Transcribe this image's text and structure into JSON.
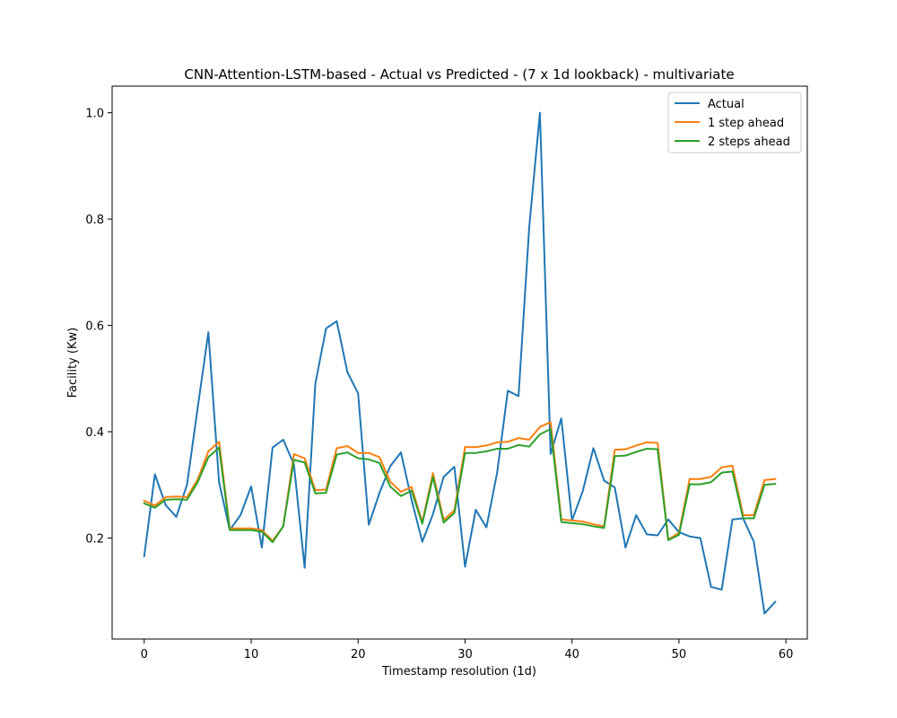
{
  "chart_data": {
    "type": "line",
    "title": "CNN-Attention-LSTM-based - Actual vs Predicted - (7 x 1d lookback) - multivariate",
    "xlabel": "Timestamp resolution (1d)",
    "ylabel": "Facility (Kw)",
    "xlim": [
      -3,
      62
    ],
    "ylim": [
      0.01,
      1.05
    ],
    "xticks": [
      0,
      10,
      20,
      30,
      40,
      50,
      60
    ],
    "yticks": [
      0.2,
      0.4,
      0.6,
      0.8,
      1.0
    ],
    "xtick_labels": [
      "0",
      "10",
      "20",
      "30",
      "40",
      "50",
      "60"
    ],
    "ytick_labels": [
      "0.2",
      "0.4",
      "0.6",
      "0.8",
      "1.0"
    ],
    "grid": false,
    "legend_position": "top-right",
    "x": [
      0,
      1,
      2,
      3,
      4,
      5,
      6,
      7,
      8,
      9,
      10,
      11,
      12,
      13,
      14,
      15,
      16,
      17,
      18,
      19,
      20,
      21,
      22,
      23,
      24,
      25,
      26,
      27,
      28,
      29,
      30,
      31,
      32,
      33,
      34,
      35,
      36,
      37,
      38,
      39,
      40,
      41,
      42,
      43,
      44,
      45,
      46,
      47,
      48,
      49,
      50,
      51,
      52,
      53,
      54,
      55,
      56,
      57,
      58,
      59
    ],
    "series": [
      {
        "name": "Actual",
        "color": "#1f77b4",
        "values": [
          0.166,
          0.32,
          0.262,
          0.24,
          0.3,
          0.445,
          0.587,
          0.305,
          0.215,
          0.243,
          0.297,
          0.182,
          0.37,
          0.385,
          0.338,
          0.144,
          0.49,
          0.594,
          0.608,
          0.512,
          0.472,
          0.225,
          0.285,
          0.335,
          0.361,
          0.272,
          0.193,
          0.245,
          0.315,
          0.334,
          0.146,
          0.253,
          0.22,
          0.323,
          0.477,
          0.467,
          0.785,
          1.0,
          0.358,
          0.425,
          0.233,
          0.288,
          0.369,
          0.308,
          0.295,
          0.182,
          0.243,
          0.207,
          0.205,
          0.235,
          0.211,
          0.203,
          0.2,
          0.108,
          0.103,
          0.235,
          0.237,
          0.193,
          0.058,
          0.08
        ]
      },
      {
        "name": "1 step ahead",
        "color": "#ff7f0e",
        "values": [
          0.27,
          0.261,
          0.277,
          0.278,
          0.277,
          0.31,
          0.363,
          0.381,
          0.218,
          0.218,
          0.218,
          0.215,
          0.195,
          0.222,
          0.358,
          0.35,
          0.29,
          0.291,
          0.369,
          0.373,
          0.36,
          0.36,
          0.352,
          0.306,
          0.287,
          0.296,
          0.23,
          0.322,
          0.234,
          0.252,
          0.371,
          0.371,
          0.374,
          0.38,
          0.381,
          0.388,
          0.385,
          0.409,
          0.418,
          0.235,
          0.233,
          0.231,
          0.226,
          0.222,
          0.366,
          0.367,
          0.374,
          0.38,
          0.379,
          0.197,
          0.21,
          0.311,
          0.311,
          0.315,
          0.333,
          0.336,
          0.243,
          0.243,
          0.309,
          0.311
        ]
      },
      {
        "name": "2 steps ahead",
        "color": "#2ca02c",
        "values": [
          0.265,
          0.257,
          0.272,
          0.273,
          0.272,
          0.305,
          0.352,
          0.37,
          0.215,
          0.215,
          0.215,
          0.212,
          0.192,
          0.222,
          0.347,
          0.342,
          0.284,
          0.285,
          0.357,
          0.361,
          0.35,
          0.348,
          0.341,
          0.297,
          0.279,
          0.289,
          0.227,
          0.315,
          0.229,
          0.247,
          0.36,
          0.36,
          0.363,
          0.368,
          0.368,
          0.375,
          0.372,
          0.395,
          0.405,
          0.23,
          0.228,
          0.226,
          0.222,
          0.219,
          0.354,
          0.355,
          0.362,
          0.368,
          0.367,
          0.196,
          0.206,
          0.301,
          0.301,
          0.305,
          0.323,
          0.325,
          0.237,
          0.237,
          0.3,
          0.302
        ]
      }
    ]
  }
}
